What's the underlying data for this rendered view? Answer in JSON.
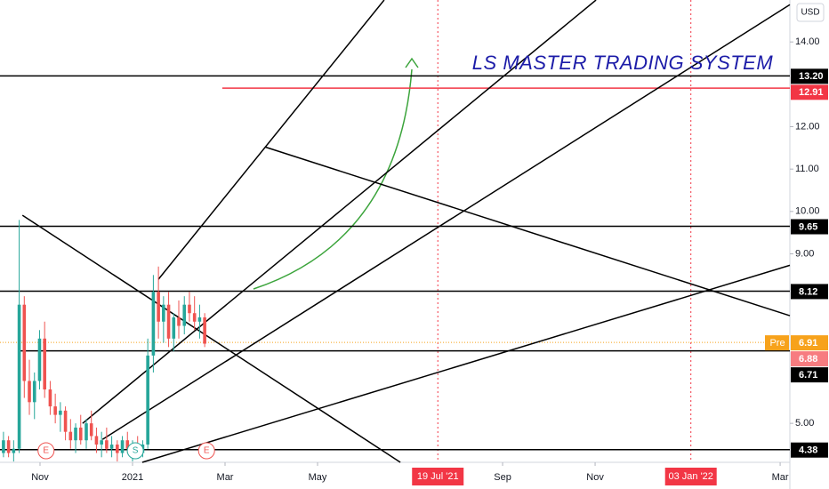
{
  "chart_data": {
    "type": "candlestick",
    "title": "LS MASTER TRADING SYSTEM",
    "currency": "USD",
    "xlim": [
      0.135,
      17.21
    ],
    "ylim": [
      4.08,
      14.99
    ],
    "yticks": [
      {
        "value": 5,
        "label": "5.00"
      },
      {
        "value": 9,
        "label": "9.00"
      },
      {
        "value": 10,
        "label": "10.00"
      },
      {
        "value": 11,
        "label": "11.00"
      },
      {
        "value": 12,
        "label": "12.00"
      },
      {
        "value": 14,
        "label": "14.00"
      }
    ],
    "xticks": [
      {
        "value": 1,
        "label": "Nov"
      },
      {
        "value": 3,
        "label": "2021"
      },
      {
        "value": 5,
        "label": "Mar"
      },
      {
        "value": 7,
        "label": "May"
      },
      {
        "value": 11,
        "label": "Sep"
      },
      {
        "value": 13,
        "label": "Nov"
      },
      {
        "value": 17,
        "label": "Mar"
      }
    ],
    "up_color": "#26a69a",
    "down_color": "#ef5350",
    "x": [
      0.21,
      0.32,
      0.43,
      0.55,
      0.66,
      0.77,
      0.88,
      0.99,
      1.1,
      1.22,
      1.33,
      1.44,
      1.55,
      1.66,
      1.77,
      1.88,
      2.0,
      2.11,
      2.22,
      2.33,
      2.44,
      2.55,
      2.67,
      2.78,
      2.89,
      3.0,
      3.11,
      3.22,
      3.33,
      3.45,
      3.56,
      3.67,
      3.78,
      3.89,
      4.0,
      4.12,
      4.23,
      4.34,
      4.45,
      4.56
    ],
    "open": [
      4.3,
      4.6,
      4.3,
      4.4,
      7.8,
      6.0,
      5.5,
      6.0,
      7.0,
      5.8,
      5.4,
      5.2,
      5.3,
      4.8,
      4.6,
      4.9,
      4.6,
      5.0,
      4.7,
      4.5,
      4.6,
      4.4,
      4.5,
      4.3,
      4.6,
      4.4,
      4.5,
      4.3,
      4.5,
      6.6,
      8.1,
      7.4,
      7.8,
      7.0,
      7.5,
      7.3,
      7.8,
      7.6,
      7.4,
      7.5
    ],
    "high": [
      4.8,
      4.7,
      4.6,
      9.8,
      8.0,
      6.5,
      6.2,
      7.2,
      7.4,
      6.0,
      5.7,
      5.5,
      5.4,
      5.1,
      5.0,
      5.2,
      5.1,
      5.3,
      4.9,
      4.8,
      4.9,
      4.7,
      4.6,
      4.7,
      4.8,
      4.6,
      4.7,
      4.6,
      7.0,
      8.5,
      8.7,
      8.0,
      8.1,
      7.6,
      7.9,
      8.0,
      8.1,
      8.0,
      7.8,
      7.6
    ],
    "low": [
      4.2,
      4.2,
      4.1,
      4.3,
      5.6,
      5.2,
      5.1,
      5.8,
      5.6,
      5.2,
      5.0,
      4.8,
      4.6,
      4.4,
      4.3,
      4.5,
      4.4,
      4.6,
      4.3,
      4.2,
      4.3,
      4.2,
      4.1,
      4.2,
      4.3,
      4.1,
      4.2,
      4.2,
      4.4,
      6.2,
      7.0,
      6.9,
      6.8,
      6.7,
      7.0,
      7.1,
      7.4,
      7.2,
      7.0,
      6.8
    ],
    "close": [
      4.6,
      4.3,
      4.4,
      7.8,
      6.0,
      5.5,
      6.0,
      7.0,
      5.8,
      5.4,
      5.2,
      5.3,
      4.8,
      4.6,
      4.9,
      4.6,
      5.0,
      4.7,
      4.5,
      4.6,
      4.4,
      4.5,
      4.3,
      4.6,
      4.4,
      4.5,
      4.3,
      4.5,
      6.6,
      8.1,
      7.4,
      7.8,
      7.0,
      7.5,
      7.3,
      7.8,
      7.6,
      7.4,
      7.5,
      6.88
    ],
    "levels": [
      {
        "value": 13.2,
        "label": "13.20",
        "from": 0.135,
        "color": "#000000"
      },
      {
        "value": 12.91,
        "label": "12.91",
        "from": 4.94,
        "color": "#f23645"
      },
      {
        "value": 9.65,
        "label": "9.65",
        "from": 0.135,
        "color": "#000000"
      },
      {
        "value": 8.12,
        "label": "8.12",
        "from": 0.135,
        "color": "#000000"
      },
      {
        "value": 6.71,
        "label": "6.71",
        "from": 0.52,
        "color": "#000000"
      },
      {
        "value": 4.38,
        "label": "4.38",
        "from": 0.135,
        "color": "#000000"
      }
    ],
    "trendlines": [
      {
        "x": [
          3.56,
          8.44
        ],
        "y": [
          8.4,
          14.99
        ]
      },
      {
        "x": [
          1.92,
          13.02
        ],
        "y": [
          5.0,
          14.99
        ]
      },
      {
        "x": [
          2.35,
          17.21
        ],
        "y": [
          4.62,
          14.88
        ]
      },
      {
        "x": [
          3.21,
          17.21
        ],
        "y": [
          4.08,
          8.73
        ]
      },
      {
        "x": [
          0.62,
          8.79
        ],
        "y": [
          9.91,
          4.08
        ]
      },
      {
        "x": [
          5.87,
          17.21
        ],
        "y": [
          11.52,
          7.54
        ]
      }
    ],
    "premarket": {
      "tag": "Pre",
      "value": 6.91,
      "label": "6.91",
      "color": "#f7a21b"
    },
    "last": {
      "value": 6.88,
      "label": "6.88",
      "color": "#f77c80"
    },
    "date_markers": [
      {
        "value": 9.6,
        "label": "19 Jul '21"
      },
      {
        "value": 15.07,
        "label": "03 Jan '22"
      }
    ],
    "events": [
      {
        "value": 1.13,
        "label": "E"
      },
      {
        "value": 3.06,
        "label": "S"
      },
      {
        "value": 4.6,
        "label": "E"
      }
    ]
  }
}
